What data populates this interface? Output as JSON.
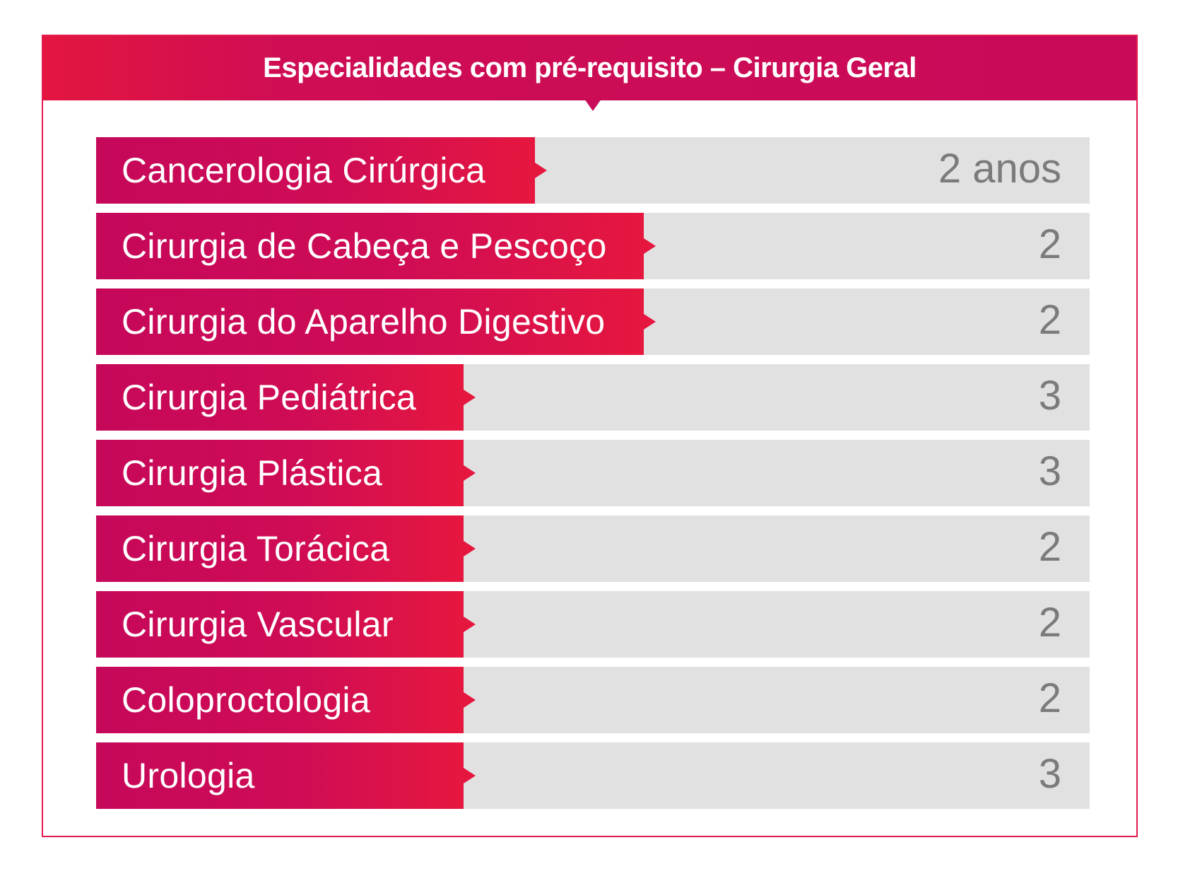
{
  "header": {
    "title": "Especialidades com pré-requisito – Cirurgia Geral"
  },
  "colors": {
    "brand_magenta": "#c90a59",
    "brand_red": "#e3163f",
    "row_background": "#e1e1e1",
    "value_text": "#7b7b7b"
  },
  "rows": [
    {
      "label": "Cancerologia Cirúrgica",
      "value": "2 anos"
    },
    {
      "label": "Cirurgia de Cabeça e Pescoço",
      "value": "2"
    },
    {
      "label": "Cirurgia do Aparelho Digestivo",
      "value": "2"
    },
    {
      "label": "Cirurgia Pediátrica",
      "value": "3"
    },
    {
      "label": "Cirurgia Plástica",
      "value": "3"
    },
    {
      "label": "Cirurgia Torácica",
      "value": "2"
    },
    {
      "label": "Cirurgia Vascular",
      "value": "2"
    },
    {
      "label": "Coloproctologia",
      "value": "2"
    },
    {
      "label": "Urologia",
      "value": "3"
    }
  ]
}
